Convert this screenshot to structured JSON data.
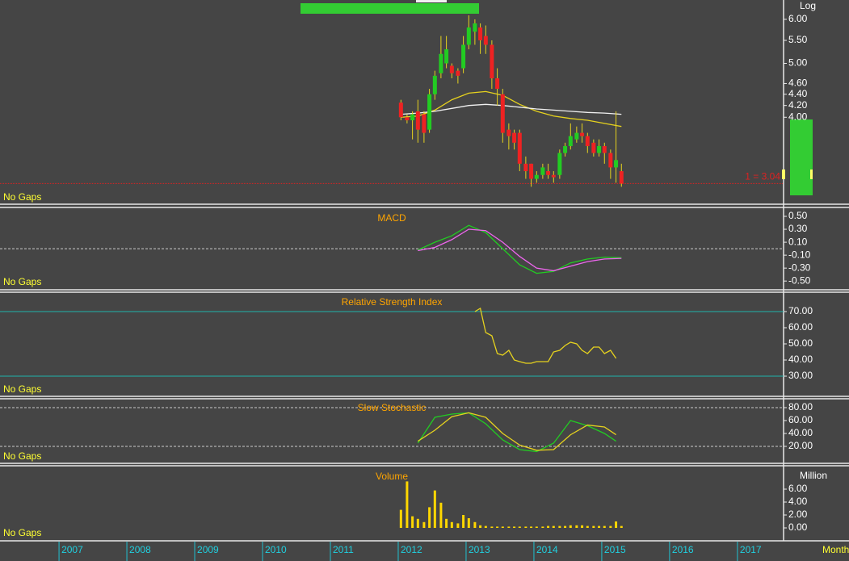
{
  "chart_data": [
    {
      "type": "candlestick",
      "log_scale": true,
      "scale_label": "Log",
      "note": "No Gaps",
      "ylim": [
        2.8,
        6.5
      ],
      "yticks": [
        {
          "value": 4,
          "label": "4.00"
        },
        {
          "value": 4.2,
          "label": "4.20"
        },
        {
          "value": 4.4,
          "label": "4.40"
        },
        {
          "value": 4.6,
          "label": "4.60"
        },
        {
          "value": 5,
          "label": "5.00"
        },
        {
          "value": 5.5,
          "label": "5.50"
        },
        {
          "value": 6,
          "label": "6.00"
        }
      ],
      "up_color": "#22cc22",
      "down_color": "#ee2222",
      "x": [
        2012.04,
        2012.13,
        2012.21,
        2012.29,
        2012.38,
        2012.46,
        2012.54,
        2012.63,
        2012.71,
        2012.79,
        2012.88,
        2012.96,
        2013.04,
        2013.13,
        2013.21,
        2013.29,
        2013.38,
        2013.46,
        2013.54,
        2013.63,
        2013.71,
        2013.79,
        2013.88,
        2013.96,
        2014.04,
        2014.13,
        2014.21,
        2014.29,
        2014.38,
        2014.46,
        2014.54,
        2014.63,
        2014.71,
        2014.79,
        2014.88,
        2014.96,
        2015.04,
        2015.13,
        2015.21,
        2015.29
      ],
      "open": [
        4.25,
        4.0,
        3.95,
        4.1,
        4.05,
        3.8,
        4.4,
        4.8,
        5.0,
        4.95,
        4.85,
        4.9,
        5.4,
        5.7,
        5.8,
        5.6,
        5.4,
        4.7,
        4.4,
        3.8,
        3.75,
        3.75,
        3.3,
        3.3,
        3.1,
        3.15,
        3.2,
        3.15,
        3.15,
        3.45,
        3.55,
        3.65,
        3.75,
        3.7,
        3.6,
        3.45,
        3.55,
        3.45,
        3.25,
        3.2
      ],
      "high": [
        4.3,
        4.05,
        4.1,
        4.3,
        4.1,
        4.5,
        4.85,
        5.6,
        5.6,
        5.0,
        4.9,
        5.6,
        6.1,
        6.0,
        5.9,
        5.85,
        5.5,
        4.9,
        4.5,
        3.9,
        3.8,
        3.8,
        3.4,
        3.3,
        3.2,
        3.3,
        3.3,
        3.2,
        3.5,
        3.6,
        3.9,
        3.85,
        3.9,
        3.75,
        3.65,
        3.65,
        3.6,
        3.5,
        4.1,
        3.3
      ],
      "low": [
        3.95,
        3.9,
        3.65,
        3.6,
        3.6,
        3.75,
        4.3,
        4.7,
        4.9,
        4.7,
        4.6,
        4.8,
        5.3,
        5.4,
        5.2,
        5.2,
        4.5,
        4.2,
        3.6,
        3.5,
        3.5,
        3.2,
        3.1,
        3.0,
        3.05,
        3.1,
        3.1,
        3.05,
        3.1,
        3.4,
        3.5,
        3.6,
        3.6,
        3.45,
        3.4,
        3.4,
        3.3,
        3.1,
        3.05,
        3.0
      ],
      "close": [
        4.0,
        3.95,
        4.05,
        3.8,
        3.75,
        4.4,
        4.75,
        5.2,
        5.3,
        4.8,
        4.75,
        5.4,
        5.8,
        5.9,
        5.5,
        5.4,
        4.7,
        4.5,
        3.75,
        3.7,
        3.6,
        3.3,
        3.2,
        3.1,
        3.15,
        3.25,
        3.15,
        3.12,
        3.45,
        3.55,
        3.7,
        3.75,
        3.7,
        3.55,
        3.45,
        3.55,
        3.45,
        3.25,
        3.35,
        3.04
      ],
      "lines": [
        {
          "color": "#e6d21e",
          "x": [
            2012.04,
            2012.29,
            2012.54,
            2012.79,
            2013.04,
            2013.29,
            2013.54,
            2013.79,
            2014.04,
            2014.29,
            2014.54,
            2014.79,
            2015.04,
            2015.29
          ],
          "values": [
            4.0,
            4.02,
            4.12,
            4.3,
            4.42,
            4.45,
            4.38,
            4.22,
            4.1,
            4.02,
            3.98,
            3.95,
            3.9,
            3.85
          ]
        },
        {
          "color": "#f0f0f0",
          "x": [
            2012.04,
            2012.29,
            2012.54,
            2012.79,
            2013.04,
            2013.29,
            2013.54,
            2013.79,
            2014.04,
            2014.29,
            2014.54,
            2014.79,
            2015.04,
            2015.29
          ],
          "values": [
            4.05,
            4.07,
            4.1,
            4.15,
            4.2,
            4.22,
            4.2,
            4.17,
            4.14,
            4.12,
            4.1,
            4.08,
            4.07,
            4.05
          ]
        }
      ],
      "last_price": {
        "value": 3.04,
        "label": "1 = 3.04",
        "color": "#dd2222"
      }
    },
    {
      "type": "line",
      "title": "MACD",
      "note": "No Gaps",
      "ylim": [
        -0.61,
        0.6
      ],
      "yticks": [
        {
          "value": -0.5,
          "label": "-0.50"
        },
        {
          "value": -0.3,
          "label": "-0.30"
        },
        {
          "value": -0.1,
          "label": "-0.10"
        },
        {
          "value": 0.1,
          "label": "0.10"
        },
        {
          "value": 0.3,
          "label": "0.30"
        },
        {
          "value": 0.5,
          "label": "0.50"
        }
      ],
      "reference_lines": [
        {
          "value": 0,
          "color": "#cccccc",
          "dashed": true
        }
      ],
      "series": [
        {
          "color": "#22cc22",
          "x": [
            2012.29,
            2012.54,
            2012.79,
            2013.04,
            2013.29,
            2013.54,
            2013.79,
            2014.04,
            2014.29,
            2014.54,
            2014.79,
            2015.04,
            2015.29
          ],
          "values": [
            -0.02,
            0.1,
            0.2,
            0.36,
            0.25,
            0.0,
            -0.25,
            -0.38,
            -0.35,
            -0.22,
            -0.16,
            -0.13,
            -0.14
          ]
        },
        {
          "color": "#ee66ee",
          "x": [
            2012.29,
            2012.54,
            2012.79,
            2013.04,
            2013.29,
            2013.54,
            2013.79,
            2014.04,
            2014.29,
            2014.54,
            2014.79,
            2015.04,
            2015.29
          ],
          "values": [
            -0.03,
            0.02,
            0.14,
            0.3,
            0.28,
            0.1,
            -0.12,
            -0.3,
            -0.34,
            -0.27,
            -0.2,
            -0.16,
            -0.15
          ]
        }
      ]
    },
    {
      "type": "line",
      "title": "Relative Strength Index",
      "note": "No Gaps",
      "ylim": [
        18,
        81
      ],
      "yticks": [
        {
          "value": 30,
          "label": "30.00"
        },
        {
          "value": 40,
          "label": "40.00"
        },
        {
          "value": 50,
          "label": "50.00"
        },
        {
          "value": 60,
          "label": "60.00"
        },
        {
          "value": 70,
          "label": "70.00"
        }
      ],
      "reference_lines": [
        {
          "value": 70,
          "color": "#20b2aa",
          "dashed": false
        },
        {
          "value": 30,
          "color": "#20b2aa",
          "dashed": false
        }
      ],
      "series": [
        {
          "color": "#e6d21e",
          "x": [
            2013.13,
            2013.21,
            2013.29,
            2013.38,
            2013.46,
            2013.54,
            2013.63,
            2013.71,
            2013.79,
            2013.88,
            2013.96,
            2014.04,
            2014.13,
            2014.21,
            2014.29,
            2014.38,
            2014.46,
            2014.54,
            2014.63,
            2014.71,
            2014.79,
            2014.88,
            2014.96,
            2015.04,
            2015.13,
            2015.21
          ],
          "values": [
            70,
            72,
            57,
            55,
            44,
            43,
            46,
            40,
            39,
            38,
            38,
            39,
            39,
            39,
            45,
            46,
            49,
            51,
            50,
            46,
            44,
            48,
            48,
            44,
            46,
            41
          ]
        }
      ]
    },
    {
      "type": "line",
      "title": "Slow Stochastic",
      "note": "No Gaps",
      "ylim": [
        -5,
        92.5
      ],
      "yticks": [
        {
          "value": 20,
          "label": "20.00"
        },
        {
          "value": 40,
          "label": "40.00"
        },
        {
          "value": 60,
          "label": "60.00"
        },
        {
          "value": 80,
          "label": "80.00"
        }
      ],
      "reference_lines": [
        {
          "value": 80,
          "color": "#cccccc",
          "dashed": true
        },
        {
          "value": 20,
          "color": "#cccccc",
          "dashed": true
        }
      ],
      "series": [
        {
          "color": "#22cc22",
          "x": [
            2012.29,
            2012.54,
            2012.79,
            2013.04,
            2013.29,
            2013.54,
            2013.79,
            2014.04,
            2014.29,
            2014.54,
            2014.79,
            2015.04,
            2015.21
          ],
          "values": [
            25,
            65,
            70,
            72,
            55,
            30,
            15,
            12,
            25,
            60,
            52,
            40,
            28
          ]
        },
        {
          "color": "#e6d21e",
          "x": [
            2012.29,
            2012.54,
            2012.79,
            2013.04,
            2013.29,
            2013.54,
            2013.79,
            2014.04,
            2014.29,
            2014.54,
            2014.79,
            2015.04,
            2015.21
          ],
          "values": [
            28,
            45,
            66,
            72,
            65,
            40,
            22,
            14,
            15,
            38,
            53,
            50,
            38
          ]
        }
      ]
    },
    {
      "type": "bar",
      "title": "Volume",
      "note": "No Gaps",
      "y_label": "Million",
      "color": "#ffd700",
      "ylim": [
        -1.75,
        9.25
      ],
      "yticks": [
        {
          "value": 0,
          "label": "0.00"
        },
        {
          "value": 2,
          "label": "2.00"
        },
        {
          "value": 4,
          "label": "4.00"
        },
        {
          "value": 6,
          "label": "6.00"
        }
      ],
      "x": [
        2012.04,
        2012.13,
        2012.21,
        2012.29,
        2012.38,
        2012.46,
        2012.54,
        2012.63,
        2012.71,
        2012.79,
        2012.88,
        2012.96,
        2013.04,
        2013.13,
        2013.21,
        2013.29,
        2013.38,
        2013.46,
        2013.54,
        2013.63,
        2013.71,
        2013.79,
        2013.88,
        2013.96,
        2014.04,
        2014.13,
        2014.21,
        2014.29,
        2014.38,
        2014.46,
        2014.54,
        2014.63,
        2014.71,
        2014.79,
        2014.88,
        2014.96,
        2015.04,
        2015.13,
        2015.21,
        2015.29
      ],
      "values": [
        2.8,
        7.2,
        1.8,
        1.4,
        0.9,
        3.2,
        5.8,
        3.9,
        1.4,
        0.9,
        0.7,
        2.0,
        1.5,
        0.9,
        0.4,
        0.3,
        0.2,
        0.2,
        0.2,
        0.2,
        0.2,
        0.2,
        0.2,
        0.2,
        0.2,
        0.2,
        0.3,
        0.3,
        0.3,
        0.3,
        0.4,
        0.4,
        0.4,
        0.3,
        0.3,
        0.3,
        0.3,
        0.3,
        1.0,
        0.3
      ],
      "xlim": [
        2006.13,
        2017.68
      ],
      "xticks": [
        2007,
        2008,
        2009,
        2010,
        2011,
        2012,
        2013,
        2014,
        2015,
        2016,
        2017
      ],
      "x_label": "Month"
    }
  ]
}
